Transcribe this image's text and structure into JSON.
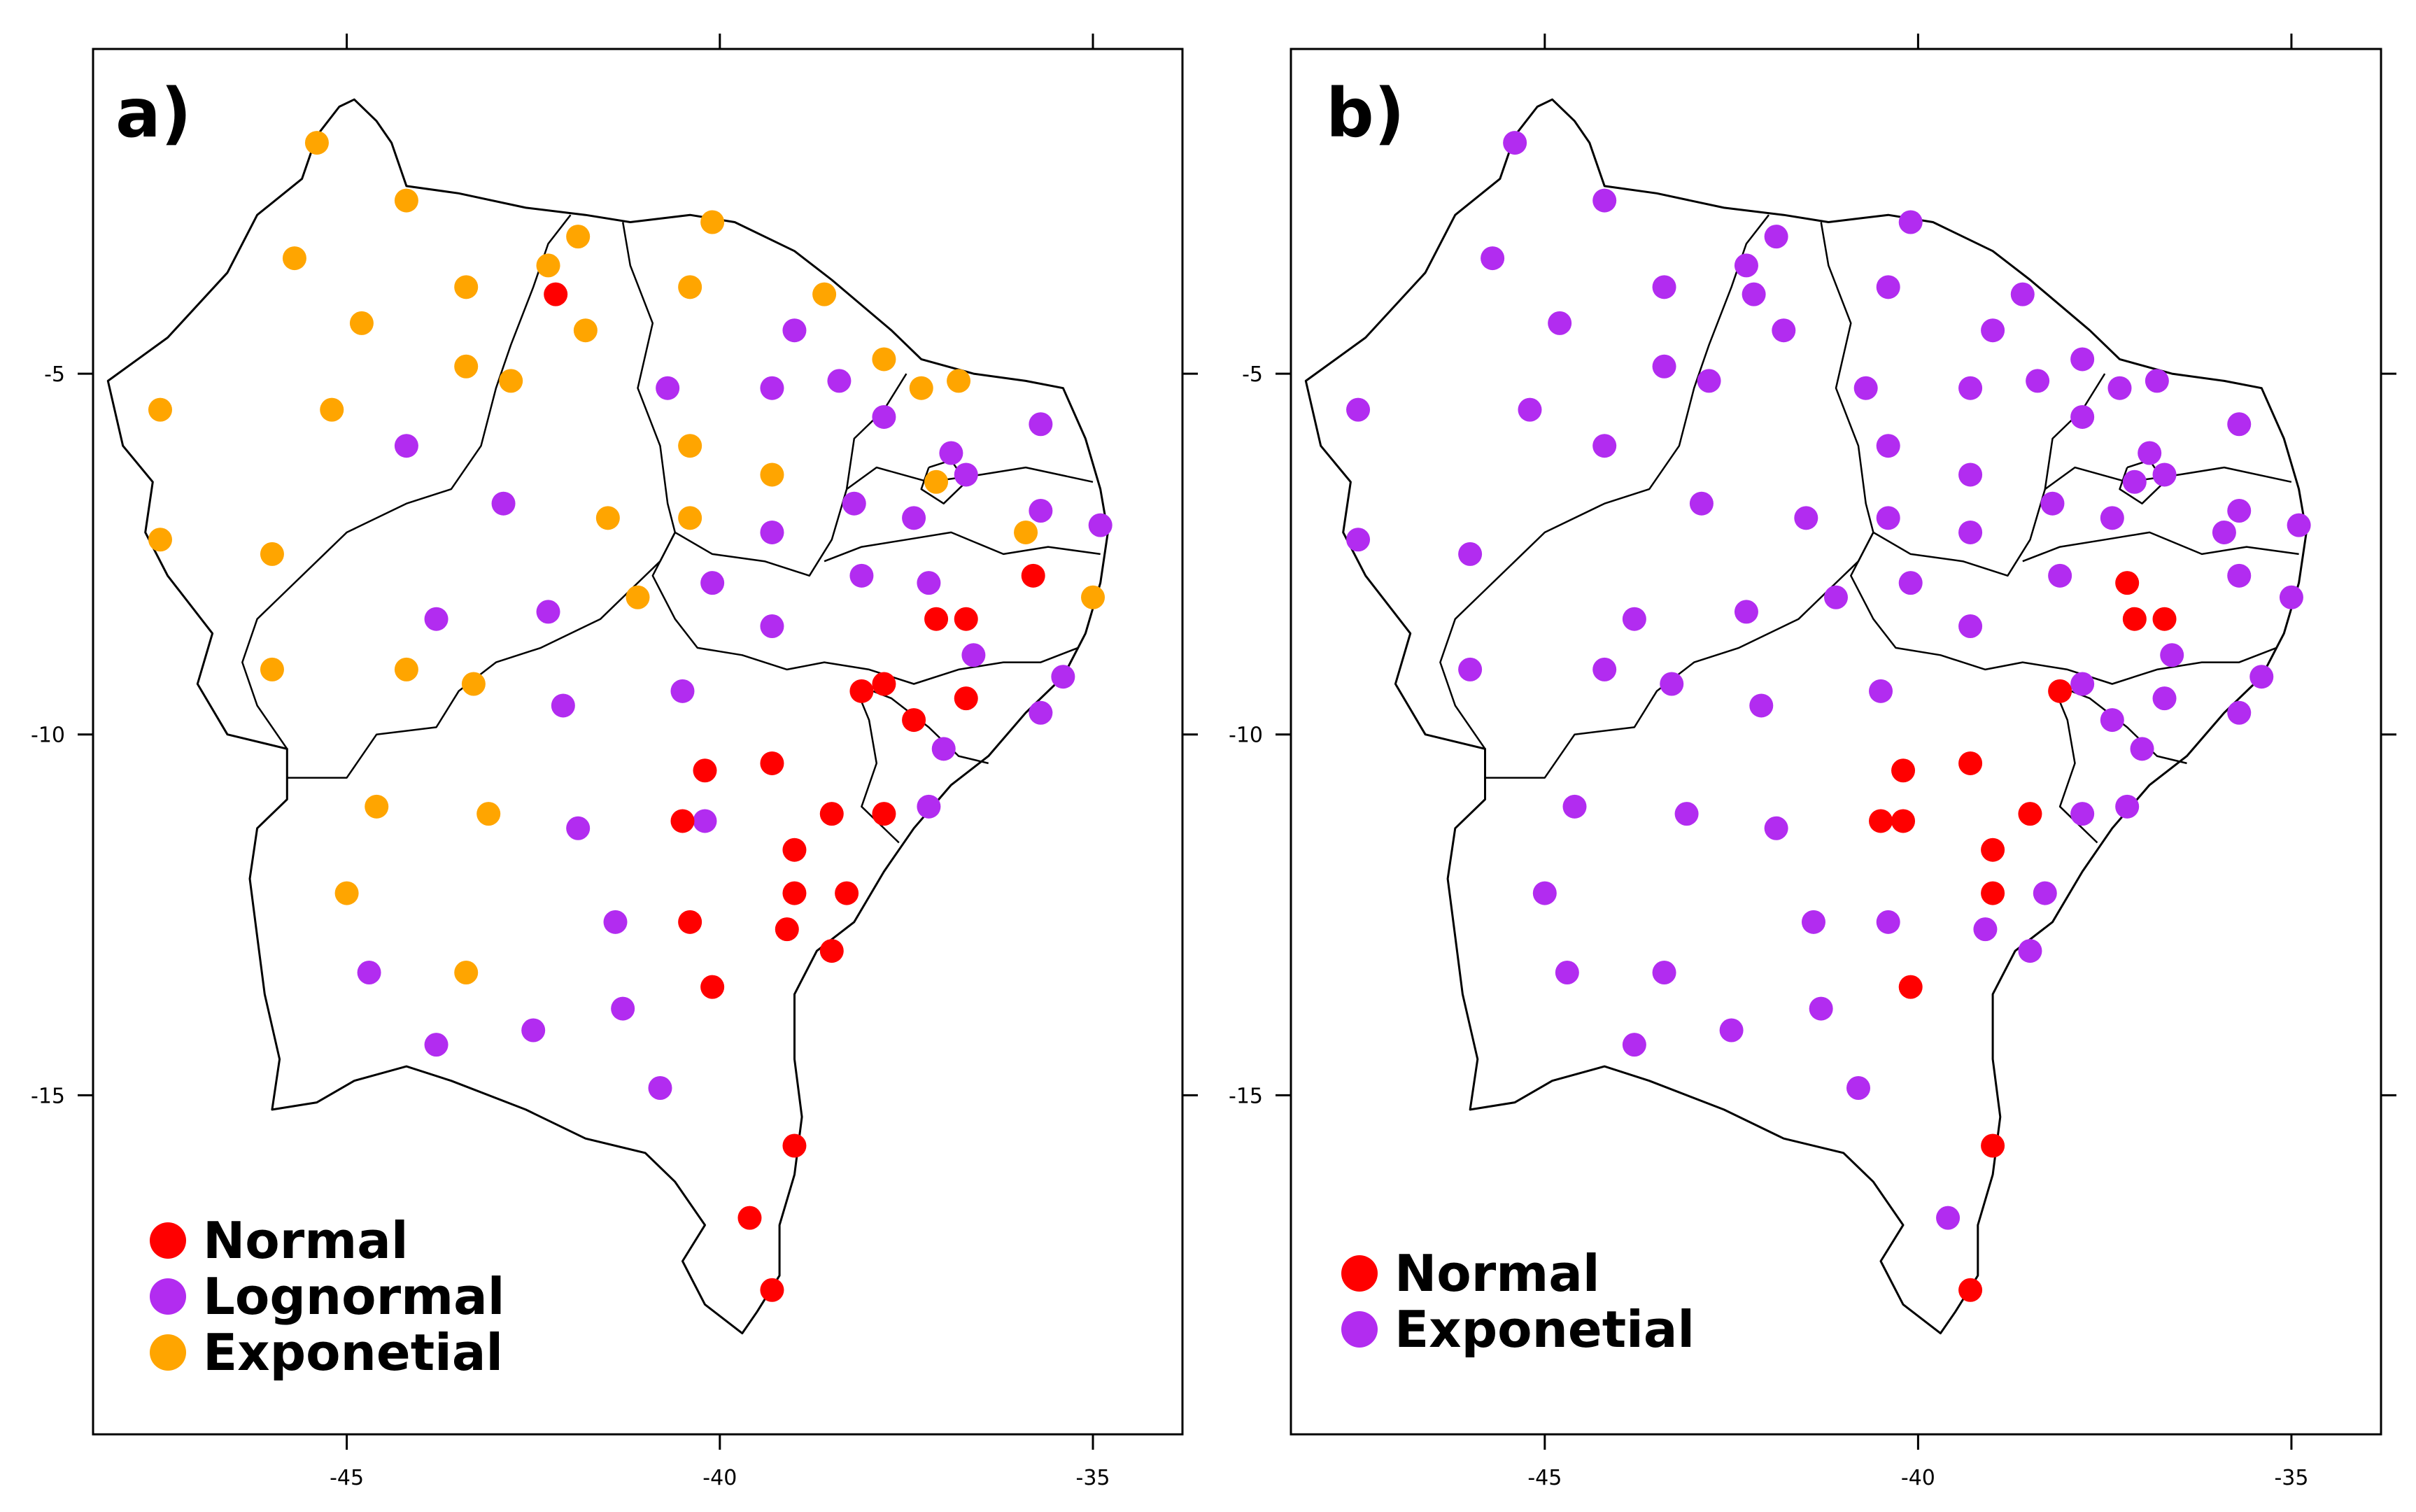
{
  "figure": {
    "colors": {
      "Normal": "#ff0000",
      "Lognormal": "#b22cf0",
      "Exponetial": "#ffa500"
    }
  },
  "panels": [
    {
      "id": "a",
      "label": "a)",
      "legend": [
        "Normal",
        "Lognormal",
        "Exponetial"
      ],
      "x_ticks": [
        "-45",
        "-40",
        "-35"
      ],
      "y_ticks": [
        "-5",
        "-10",
        "-15"
      ],
      "points": [
        {
          "lon": -45.4,
          "lat": -1.8,
          "cls": "Exponetial"
        },
        {
          "lon": -44.2,
          "lat": -2.6,
          "cls": "Exponetial"
        },
        {
          "lon": -45.7,
          "lat": -3.4,
          "cls": "Exponetial"
        },
        {
          "lon": -43.4,
          "lat": -3.8,
          "cls": "Exponetial"
        },
        {
          "lon": -44.8,
          "lat": -4.3,
          "cls": "Exponetial"
        },
        {
          "lon": -43.4,
          "lat": -4.9,
          "cls": "Exponetial"
        },
        {
          "lon": -42.8,
          "lat": -5.1,
          "cls": "Exponetial"
        },
        {
          "lon": -45.2,
          "lat": -5.5,
          "cls": "Exponetial"
        },
        {
          "lon": -47.5,
          "lat": -5.5,
          "cls": "Exponetial"
        },
        {
          "lon": -47.5,
          "lat": -7.3,
          "cls": "Exponetial"
        },
        {
          "lon": -46.0,
          "lat": -7.5,
          "cls": "Exponetial"
        },
        {
          "lon": -41.9,
          "lat": -3.1,
          "cls": "Exponetial"
        },
        {
          "lon": -42.3,
          "lat": -3.5,
          "cls": "Exponetial"
        },
        {
          "lon": -41.8,
          "lat": -4.4,
          "cls": "Exponetial"
        },
        {
          "lon": -40.1,
          "lat": -2.9,
          "cls": "Exponetial"
        },
        {
          "lon": -40.4,
          "lat": -3.8,
          "cls": "Exponetial"
        },
        {
          "lon": -38.6,
          "lat": -3.9,
          "cls": "Exponetial"
        },
        {
          "lon": -37.8,
          "lat": -4.8,
          "cls": "Exponetial"
        },
        {
          "lon": -40.4,
          "lat": -6.0,
          "cls": "Exponetial"
        },
        {
          "lon": -39.3,
          "lat": -6.4,
          "cls": "Exponetial"
        },
        {
          "lon": -40.4,
          "lat": -7.0,
          "cls": "Exponetial"
        },
        {
          "lon": -41.5,
          "lat": -7.0,
          "cls": "Exponetial"
        },
        {
          "lon": -41.1,
          "lat": -8.1,
          "cls": "Exponetial"
        },
        {
          "lon": -44.2,
          "lat": -9.1,
          "cls": "Exponetial"
        },
        {
          "lon": -46.0,
          "lat": -9.1,
          "cls": "Exponetial"
        },
        {
          "lon": -43.3,
          "lat": -9.3,
          "cls": "Exponetial"
        },
        {
          "lon": -44.6,
          "lat": -11.0,
          "cls": "Exponetial"
        },
        {
          "lon": -43.1,
          "lat": -11.1,
          "cls": "Exponetial"
        },
        {
          "lon": -45.0,
          "lat": -12.2,
          "cls": "Exponetial"
        },
        {
          "lon": -43.4,
          "lat": -13.3,
          "cls": "Exponetial"
        },
        {
          "lon": -37.3,
          "lat": -5.2,
          "cls": "Exponetial"
        },
        {
          "lon": -36.8,
          "lat": -5.1,
          "cls": "Exponetial"
        },
        {
          "lon": -37.1,
          "lat": -6.5,
          "cls": "Exponetial"
        },
        {
          "lon": -35.9,
          "lat": -7.2,
          "cls": "Exponetial"
        },
        {
          "lon": -35.0,
          "lat": -8.1,
          "cls": "Exponetial"
        },
        {
          "lon": -44.2,
          "lat": -6.0,
          "cls": "Lognormal"
        },
        {
          "lon": -42.9,
          "lat": -6.8,
          "cls": "Lognormal"
        },
        {
          "lon": -43.8,
          "lat": -8.4,
          "cls": "Lognormal"
        },
        {
          "lon": -42.3,
          "lat": -8.3,
          "cls": "Lognormal"
        },
        {
          "lon": -42.1,
          "lat": -9.6,
          "cls": "Lognormal"
        },
        {
          "lon": -39.0,
          "lat": -4.4,
          "cls": "Lognormal"
        },
        {
          "lon": -40.7,
          "lat": -5.2,
          "cls": "Lognormal"
        },
        {
          "lon": -39.3,
          "lat": -5.2,
          "cls": "Lognormal"
        },
        {
          "lon": -38.4,
          "lat": -5.1,
          "cls": "Lognormal"
        },
        {
          "lon": -37.8,
          "lat": -5.6,
          "cls": "Lognormal"
        },
        {
          "lon": -39.3,
          "lat": -7.2,
          "cls": "Lognormal"
        },
        {
          "lon": -40.1,
          "lat": -7.9,
          "cls": "Lognormal"
        },
        {
          "lon": -38.2,
          "lat": -6.8,
          "cls": "Lognormal"
        },
        {
          "lon": -38.1,
          "lat": -7.8,
          "cls": "Lognormal"
        },
        {
          "lon": -37.4,
          "lat": -7.0,
          "cls": "Lognormal"
        },
        {
          "lon": -36.9,
          "lat": -6.1,
          "cls": "Lognormal"
        },
        {
          "lon": -36.7,
          "lat": -6.4,
          "cls": "Lognormal"
        },
        {
          "lon": -35.7,
          "lat": -5.7,
          "cls": "Lognormal"
        },
        {
          "lon": -35.7,
          "lat": -6.9,
          "cls": "Lognormal"
        },
        {
          "lon": -34.9,
          "lat": -7.1,
          "cls": "Lognormal"
        },
        {
          "lon": -37.2,
          "lat": -7.9,
          "cls": "Lognormal"
        },
        {
          "lon": -39.3,
          "lat": -8.5,
          "cls": "Lognormal"
        },
        {
          "lon": -36.6,
          "lat": -8.9,
          "cls": "Lognormal"
        },
        {
          "lon": -35.4,
          "lat": -9.2,
          "cls": "Lognormal"
        },
        {
          "lon": -35.7,
          "lat": -9.7,
          "cls": "Lognormal"
        },
        {
          "lon": -40.5,
          "lat": -9.4,
          "cls": "Lognormal"
        },
        {
          "lon": -37.0,
          "lat": -10.2,
          "cls": "Lognormal"
        },
        {
          "lon": -37.2,
          "lat": -11.0,
          "cls": "Lognormal"
        },
        {
          "lon": -40.2,
          "lat": -11.2,
          "cls": "Lognormal"
        },
        {
          "lon": -41.9,
          "lat": -11.3,
          "cls": "Lognormal"
        },
        {
          "lon": -41.4,
          "lat": -12.6,
          "cls": "Lognormal"
        },
        {
          "lon": -44.7,
          "lat": -13.3,
          "cls": "Lognormal"
        },
        {
          "lon": -41.3,
          "lat": -13.8,
          "cls": "Lognormal"
        },
        {
          "lon": -42.5,
          "lat": -14.1,
          "cls": "Lognormal"
        },
        {
          "lon": -43.8,
          "lat": -14.3,
          "cls": "Lognormal"
        },
        {
          "lon": -40.8,
          "lat": -14.9,
          "cls": "Lognormal"
        },
        {
          "lon": -42.2,
          "lat": -3.9,
          "cls": "Normal"
        },
        {
          "lon": -35.8,
          "lat": -7.8,
          "cls": "Normal"
        },
        {
          "lon": -37.1,
          "lat": -8.4,
          "cls": "Normal"
        },
        {
          "lon": -36.7,
          "lat": -8.4,
          "cls": "Normal"
        },
        {
          "lon": -37.8,
          "lat": -9.3,
          "cls": "Normal"
        },
        {
          "lon": -38.1,
          "lat": -9.4,
          "cls": "Normal"
        },
        {
          "lon": -36.7,
          "lat": -9.5,
          "cls": "Normal"
        },
        {
          "lon": -37.4,
          "lat": -9.8,
          "cls": "Normal"
        },
        {
          "lon": -40.2,
          "lat": -10.5,
          "cls": "Normal"
        },
        {
          "lon": -39.3,
          "lat": -10.4,
          "cls": "Normal"
        },
        {
          "lon": -38.5,
          "lat": -11.1,
          "cls": "Normal"
        },
        {
          "lon": -37.8,
          "lat": -11.1,
          "cls": "Normal"
        },
        {
          "lon": -40.5,
          "lat": -11.2,
          "cls": "Normal"
        },
        {
          "lon": -39.0,
          "lat": -11.6,
          "cls": "Normal"
        },
        {
          "lon": -39.0,
          "lat": -12.2,
          "cls": "Normal"
        },
        {
          "lon": -38.3,
          "lat": -12.2,
          "cls": "Normal"
        },
        {
          "lon": -40.4,
          "lat": -12.6,
          "cls": "Normal"
        },
        {
          "lon": -39.1,
          "lat": -12.7,
          "cls": "Normal"
        },
        {
          "lon": -38.5,
          "lat": -13.0,
          "cls": "Normal"
        },
        {
          "lon": -40.1,
          "lat": -13.5,
          "cls": "Normal"
        },
        {
          "lon": -39.0,
          "lat": -15.7,
          "cls": "Normal"
        },
        {
          "lon": -39.6,
          "lat": -16.7,
          "cls": "Normal"
        },
        {
          "lon": -39.3,
          "lat": -17.7,
          "cls": "Normal"
        }
      ]
    },
    {
      "id": "b",
      "label": "b)",
      "legend": [
        "Normal",
        "Exponetial"
      ],
      "legend_colors": [
        "#ff0000",
        "#b22cf0"
      ],
      "x_ticks": [
        "-45",
        "-40",
        "-35"
      ],
      "y_ticks": [
        "-5",
        "-10",
        "-15"
      ],
      "points": [
        {
          "lon": -45.4,
          "lat": -1.8,
          "cls": "Exponetial"
        },
        {
          "lon": -44.2,
          "lat": -2.6,
          "cls": "Exponetial"
        },
        {
          "lon": -45.7,
          "lat": -3.4,
          "cls": "Exponetial"
        },
        {
          "lon": -43.4,
          "lat": -3.8,
          "cls": "Exponetial"
        },
        {
          "lon": -44.8,
          "lat": -4.3,
          "cls": "Exponetial"
        },
        {
          "lon": -43.4,
          "lat": -4.9,
          "cls": "Exponetial"
        },
        {
          "lon": -42.8,
          "lat": -5.1,
          "cls": "Exponetial"
        },
        {
          "lon": -45.2,
          "lat": -5.5,
          "cls": "Exponetial"
        },
        {
          "lon": -47.5,
          "lat": -5.5,
          "cls": "Exponetial"
        },
        {
          "lon": -47.5,
          "lat": -7.3,
          "cls": "Exponetial"
        },
        {
          "lon": -46.0,
          "lat": -7.5,
          "cls": "Exponetial"
        },
        {
          "lon": -41.9,
          "lat": -3.1,
          "cls": "Exponetial"
        },
        {
          "lon": -42.3,
          "lat": -3.5,
          "cls": "Exponetial"
        },
        {
          "lon": -41.8,
          "lat": -4.4,
          "cls": "Exponetial"
        },
        {
          "lon": -40.1,
          "lat": -2.9,
          "cls": "Exponetial"
        },
        {
          "lon": -40.4,
          "lat": -3.8,
          "cls": "Exponetial"
        },
        {
          "lon": -38.6,
          "lat": -3.9,
          "cls": "Exponetial"
        },
        {
          "lon": -37.8,
          "lat": -4.8,
          "cls": "Exponetial"
        },
        {
          "lon": -40.4,
          "lat": -6.0,
          "cls": "Exponetial"
        },
        {
          "lon": -39.3,
          "lat": -6.4,
          "cls": "Exponetial"
        },
        {
          "lon": -40.4,
          "lat": -7.0,
          "cls": "Exponetial"
        },
        {
          "lon": -41.5,
          "lat": -7.0,
          "cls": "Exponetial"
        },
        {
          "lon": -41.1,
          "lat": -8.1,
          "cls": "Exponetial"
        },
        {
          "lon": -44.2,
          "lat": -9.1,
          "cls": "Exponetial"
        },
        {
          "lon": -46.0,
          "lat": -9.1,
          "cls": "Exponetial"
        },
        {
          "lon": -43.3,
          "lat": -9.3,
          "cls": "Exponetial"
        },
        {
          "lon": -44.6,
          "lat": -11.0,
          "cls": "Exponetial"
        },
        {
          "lon": -43.1,
          "lat": -11.1,
          "cls": "Exponetial"
        },
        {
          "lon": -45.0,
          "lat": -12.2,
          "cls": "Exponetial"
        },
        {
          "lon": -43.4,
          "lat": -13.3,
          "cls": "Exponetial"
        },
        {
          "lon": -37.3,
          "lat": -5.2,
          "cls": "Exponetial"
        },
        {
          "lon": -36.8,
          "lat": -5.1,
          "cls": "Exponetial"
        },
        {
          "lon": -37.1,
          "lat": -6.5,
          "cls": "Exponetial"
        },
        {
          "lon": -35.9,
          "lat": -7.2,
          "cls": "Exponetial"
        },
        {
          "lon": -35.0,
          "lat": -8.1,
          "cls": "Exponetial"
        },
        {
          "lon": -44.2,
          "lat": -6.0,
          "cls": "Exponetial"
        },
        {
          "lon": -42.9,
          "lat": -6.8,
          "cls": "Exponetial"
        },
        {
          "lon": -43.8,
          "lat": -8.4,
          "cls": "Exponetial"
        },
        {
          "lon": -42.3,
          "lat": -8.3,
          "cls": "Exponetial"
        },
        {
          "lon": -42.1,
          "lat": -9.6,
          "cls": "Exponetial"
        },
        {
          "lon": -39.0,
          "lat": -4.4,
          "cls": "Exponetial"
        },
        {
          "lon": -40.7,
          "lat": -5.2,
          "cls": "Exponetial"
        },
        {
          "lon": -39.3,
          "lat": -5.2,
          "cls": "Exponetial"
        },
        {
          "lon": -38.4,
          "lat": -5.1,
          "cls": "Exponetial"
        },
        {
          "lon": -37.8,
          "lat": -5.6,
          "cls": "Exponetial"
        },
        {
          "lon": -39.3,
          "lat": -7.2,
          "cls": "Exponetial"
        },
        {
          "lon": -40.1,
          "lat": -7.9,
          "cls": "Exponetial"
        },
        {
          "lon": -38.2,
          "lat": -6.8,
          "cls": "Exponetial"
        },
        {
          "lon": -38.1,
          "lat": -7.8,
          "cls": "Exponetial"
        },
        {
          "lon": -37.4,
          "lat": -7.0,
          "cls": "Exponetial"
        },
        {
          "lon": -36.9,
          "lat": -6.1,
          "cls": "Exponetial"
        },
        {
          "lon": -36.7,
          "lat": -6.4,
          "cls": "Exponetial"
        },
        {
          "lon": -35.7,
          "lat": -5.7,
          "cls": "Exponetial"
        },
        {
          "lon": -35.7,
          "lat": -6.9,
          "cls": "Exponetial"
        },
        {
          "lon": -34.9,
          "lat": -7.1,
          "cls": "Exponetial"
        },
        {
          "lon": -35.7,
          "lat": -7.8,
          "cls": "Exponetial"
        },
        {
          "lon": -39.3,
          "lat": -8.5,
          "cls": "Exponetial"
        },
        {
          "lon": -36.6,
          "lat": -8.9,
          "cls": "Exponetial"
        },
        {
          "lon": -35.4,
          "lat": -9.2,
          "cls": "Exponetial"
        },
        {
          "lon": -35.7,
          "lat": -9.7,
          "cls": "Exponetial"
        },
        {
          "lon": -40.5,
          "lat": -9.4,
          "cls": "Exponetial"
        },
        {
          "lon": -37.0,
          "lat": -10.2,
          "cls": "Exponetial"
        },
        {
          "lon": -37.2,
          "lat": -11.0,
          "cls": "Exponetial"
        },
        {
          "lon": -41.9,
          "lat": -11.3,
          "cls": "Exponetial"
        },
        {
          "lon": -41.4,
          "lat": -12.6,
          "cls": "Exponetial"
        },
        {
          "lon": -44.7,
          "lat": -13.3,
          "cls": "Exponetial"
        },
        {
          "lon": -41.3,
          "lat": -13.8,
          "cls": "Exponetial"
        },
        {
          "lon": -42.5,
          "lat": -14.1,
          "cls": "Exponetial"
        },
        {
          "lon": -43.8,
          "lat": -14.3,
          "cls": "Exponetial"
        },
        {
          "lon": -40.8,
          "lat": -14.9,
          "cls": "Exponetial"
        },
        {
          "lon": -37.8,
          "lat": -9.3,
          "cls": "Exponetial"
        },
        {
          "lon": -37.4,
          "lat": -9.8,
          "cls": "Exponetial"
        },
        {
          "lon": -36.7,
          "lat": -9.5,
          "cls": "Exponetial"
        },
        {
          "lon": -37.8,
          "lat": -11.1,
          "cls": "Exponetial"
        },
        {
          "lon": -38.3,
          "lat": -12.2,
          "cls": "Exponetial"
        },
        {
          "lon": -40.4,
          "lat": -12.6,
          "cls": "Exponetial"
        },
        {
          "lon": -39.1,
          "lat": -12.7,
          "cls": "Exponetial"
        },
        {
          "lon": -38.5,
          "lat": -13.0,
          "cls": "Exponetial"
        },
        {
          "lon": -39.6,
          "lat": -16.7,
          "cls": "Exponetial"
        },
        {
          "lon": -42.2,
          "lat": -3.9,
          "cls": "Exponetial"
        },
        {
          "lon": -37.2,
          "lat": -7.9,
          "cls": "Normal"
        },
        {
          "lon": -37.1,
          "lat": -8.4,
          "cls": "Normal"
        },
        {
          "lon": -36.7,
          "lat": -8.4,
          "cls": "Normal"
        },
        {
          "lon": -38.1,
          "lat": -9.4,
          "cls": "Normal"
        },
        {
          "lon": -40.2,
          "lat": -10.5,
          "cls": "Normal"
        },
        {
          "lon": -39.3,
          "lat": -10.4,
          "cls": "Normal"
        },
        {
          "lon": -38.5,
          "lat": -11.1,
          "cls": "Normal"
        },
        {
          "lon": -40.5,
          "lat": -11.2,
          "cls": "Normal"
        },
        {
          "lon": -40.2,
          "lat": -11.2,
          "cls": "Normal"
        },
        {
          "lon": -39.0,
          "lat": -11.6,
          "cls": "Normal"
        },
        {
          "lon": -39.0,
          "lat": -12.2,
          "cls": "Normal"
        },
        {
          "lon": -40.1,
          "lat": -13.5,
          "cls": "Normal"
        },
        {
          "lon": -39.0,
          "lat": -15.7,
          "cls": "Normal"
        },
        {
          "lon": -39.3,
          "lat": -17.7,
          "cls": "Normal"
        }
      ]
    }
  ]
}
